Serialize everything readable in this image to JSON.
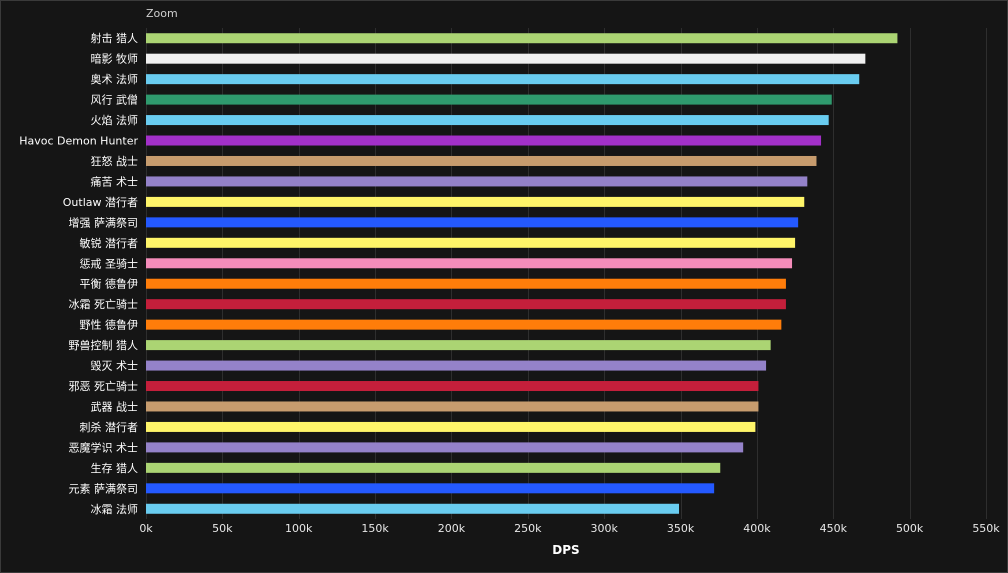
{
  "chart_data": {
    "type": "bar",
    "orientation": "horizontal",
    "title": "",
    "zoom_label": "Zoom",
    "xlabel": "DPS",
    "ylabel": "",
    "xlim": [
      0,
      550000
    ],
    "x_ticks": [
      0,
      50000,
      100000,
      150000,
      200000,
      250000,
      300000,
      350000,
      400000,
      450000,
      500000,
      550000
    ],
    "x_tick_labels": [
      "0k",
      "50k",
      "100k",
      "150k",
      "200k",
      "250k",
      "300k",
      "350k",
      "400k",
      "450k",
      "500k",
      "550k"
    ],
    "grid": true,
    "legend": "none",
    "categories": [
      "射击 猎人",
      "暗影 牧师",
      "奥术 法师",
      "风行 武僧",
      "火焰 法师",
      "Havoc Demon Hunter",
      "狂怒 战士",
      "痛苦 术士",
      "Outlaw 潜行者",
      "增强 萨满祭司",
      "敏锐 潜行者",
      "惩戒 圣骑士",
      "平衡 德鲁伊",
      "冰霜 死亡骑士",
      "野性 德鲁伊",
      "野兽控制 猎人",
      "毁灭 术士",
      "邪恶 死亡骑士",
      "武器 战士",
      "刺杀 潜行者",
      "恶魔学识 术士",
      "生存 猎人",
      "元素 萨满祭司",
      "冰霜 法师"
    ],
    "values": [
      492000,
      471000,
      467000,
      449000,
      447000,
      442000,
      439000,
      433000,
      431000,
      427000,
      425000,
      423000,
      419000,
      419000,
      416000,
      409000,
      406000,
      401000,
      401000,
      399000,
      391000,
      376000,
      372000,
      349000
    ],
    "colors": [
      "#abd473",
      "#f0f0f0",
      "#69ccf0",
      "#2f9a6e",
      "#69ccf0",
      "#a330c9",
      "#c79c6e",
      "#9482c9",
      "#fff569",
      "#2459ff",
      "#fff569",
      "#f58cba",
      "#ff7d0a",
      "#c41f3b",
      "#ff7d0a",
      "#abd473",
      "#9482c9",
      "#c41f3b",
      "#c79c6e",
      "#fff569",
      "#9482c9",
      "#abd473",
      "#2459ff",
      "#69ccf0"
    ],
    "theme": {
      "background": "#151515",
      "grid_color": "#2e2e2e",
      "text_color": "#ffffff",
      "tick_text_color": "#e8e8e8"
    }
  }
}
